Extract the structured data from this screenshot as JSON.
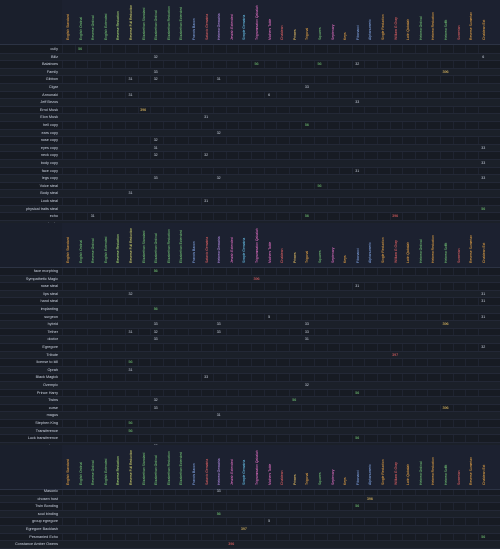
{
  "columns": [
    {
      "label": "English Standard",
      "color": "#ffb347"
    },
    {
      "label": "English Ordinal",
      "color": "#7cd67c"
    },
    {
      "label": "Reverse Ordinal",
      "color": "#7cd67c"
    },
    {
      "label": "English Extended",
      "color": "#7cd67c"
    },
    {
      "label": "Reverse Reduction",
      "color": "#b9f27c"
    },
    {
      "label": "Reverse Full Reduction",
      "color": "#e0e070"
    },
    {
      "label": "Elizabethan Standard",
      "color": "#7cd67c"
    },
    {
      "label": "Elizabethan Ordinal",
      "color": "#7cd67c"
    },
    {
      "label": "Elizabethan Reduction",
      "color": "#7cd67c"
    },
    {
      "label": "Elizabethan Extended",
      "color": "#7cd67c"
    },
    {
      "label": "Francis Bacon",
      "color": "#8fb8ff"
    },
    {
      "label": "Satanic Gematria",
      "color": "#ff6a6a"
    },
    {
      "label": "Hebrew Gematria",
      "color": "#c99bff"
    },
    {
      "label": "Jewish Extended",
      "color": "#ff7ad9"
    },
    {
      "label": "Simple Gematria",
      "color": "#6fd3ff"
    },
    {
      "label": "Trigrammaton Qabalah",
      "color": "#ff7ad9"
    },
    {
      "label": "Mathers Table",
      "color": "#ff7ad9"
    },
    {
      "label": "Chaldean",
      "color": "#ff6a6a"
    },
    {
      "label": "Primes",
      "color": "#ffd36a"
    },
    {
      "label": "Trigonal",
      "color": "#ffb347"
    },
    {
      "label": "Squares",
      "color": "#7cd67c"
    },
    {
      "label": "Septenary",
      "color": "#ff7ad9"
    },
    {
      "label": "Keys",
      "color": "#ffb347"
    },
    {
      "label": "Fibonacci",
      "color": "#8fb8ff"
    },
    {
      "label": "Alphanumeric",
      "color": "#8fb8ff"
    },
    {
      "label": "Single Reduction",
      "color": "#ffb347"
    },
    {
      "label": "William G Gray",
      "color": "#ff6a6a"
    },
    {
      "label": "Latin Qabalah",
      "color": "#ffb347"
    },
    {
      "label": "Hebrew Ordinal",
      "color": "#7cd67c"
    },
    {
      "label": "Hebrew Reduction",
      "color": "#ffb347"
    },
    {
      "label": "Hebrew Soffit",
      "color": "#7cd67c"
    },
    {
      "label": "Sumerian",
      "color": "#ff6a6a"
    },
    {
      "label": "Reverse Sumerian",
      "color": "#ffb347"
    },
    {
      "label": "Chaldean Ext",
      "color": "#ffb347"
    }
  ],
  "rows": [
    {
      "label": "cully",
      "alt": false,
      "cells": [
        [
          1,
          "56",
          "#7cd67c"
        ]
      ]
    },
    {
      "label": "Billz",
      "alt": true,
      "cells": [
        [
          7,
          "32",
          "#cfd6e4"
        ],
        [
          33,
          "6",
          "#cfd6e4"
        ]
      ]
    },
    {
      "label": "Balatroes",
      "alt": false,
      "cells": [
        [
          15,
          "56",
          "#7cd67c"
        ],
        [
          20,
          "56",
          "#7cd67c"
        ],
        [
          23,
          "32",
          "#cfd6e4"
        ]
      ]
    },
    {
      "label": "Family",
      "alt": true,
      "cells": [
        [
          7,
          "33",
          "#cfd6e4"
        ],
        [
          30,
          "396",
          "#ffd36a"
        ]
      ]
    },
    {
      "label": "Gibbon",
      "alt": false,
      "cells": [
        [
          5,
          "31",
          "#cfd6e4"
        ],
        [
          7,
          "32",
          "#cfd6e4"
        ],
        [
          12,
          "31",
          "#cfd6e4"
        ]
      ]
    },
    {
      "label": "Cigar",
      "alt": true,
      "cells": [
        [
          19,
          "33",
          "#cfd6e4"
        ]
      ]
    },
    {
      "label": "Annunaki",
      "alt": false,
      "cells": [
        [
          5,
          "31",
          "#cfd6e4"
        ],
        [
          16,
          "6",
          "#cfd6e4"
        ]
      ]
    },
    {
      "label": "Jeff Bezos",
      "alt": true,
      "cells": [
        [
          23,
          "33",
          "#cfd6e4"
        ]
      ]
    },
    {
      "label": "Errol Musk",
      "alt": false,
      "cells": [
        [
          6,
          "396",
          "#ffd36a"
        ]
      ]
    },
    {
      "label": "Elon Musk",
      "alt": true,
      "cells": [
        [
          11,
          "31",
          "#cfd6e4"
        ]
      ]
    },
    {
      "label": "hell copy",
      "alt": false,
      "cells": [
        [
          19,
          "56",
          "#7cd67c"
        ]
      ]
    },
    {
      "label": "ears copy",
      "alt": true,
      "cells": [
        [
          12,
          "32",
          "#cfd6e4"
        ]
      ]
    },
    {
      "label": "nose copy",
      "alt": false,
      "cells": [
        [
          7,
          "32",
          "#cfd6e4"
        ]
      ]
    },
    {
      "label": "eyes copy",
      "alt": true,
      "cells": [
        [
          7,
          "31",
          "#cfd6e4"
        ],
        [
          33,
          "33",
          "#cfd6e4"
        ]
      ]
    },
    {
      "label": "neck copy",
      "alt": false,
      "cells": [
        [
          7,
          "32",
          "#cfd6e4"
        ],
        [
          11,
          "32",
          "#cfd6e4"
        ]
      ]
    },
    {
      "label": "body copy",
      "alt": true,
      "cells": [
        [
          33,
          "33",
          "#cfd6e4"
        ]
      ]
    },
    {
      "label": "face copy",
      "alt": false,
      "cells": [
        [
          23,
          "31",
          "#cfd6e4"
        ]
      ]
    },
    {
      "label": "legs copy",
      "alt": true,
      "cells": [
        [
          7,
          "33",
          "#cfd6e4"
        ],
        [
          12,
          "32",
          "#cfd6e4"
        ],
        [
          33,
          "33",
          "#cfd6e4"
        ]
      ]
    },
    {
      "label": "Voice steal",
      "alt": false,
      "cells": [
        [
          20,
          "56",
          "#7cd67c"
        ]
      ]
    },
    {
      "label": "Body steal",
      "alt": true,
      "cells": [
        [
          5,
          "31",
          "#cfd6e4"
        ]
      ]
    },
    {
      "label": "Look steal",
      "alt": false,
      "cells": [
        [
          11,
          "31",
          "#cfd6e4"
        ]
      ]
    },
    {
      "label": "physical traits steal",
      "alt": true,
      "cells": [
        [
          33,
          "56",
          "#7cd67c"
        ]
      ]
    },
    {
      "label": "echo",
      "alt": false,
      "cells": [
        [
          2,
          "31",
          "#cfd6e4"
        ],
        [
          19,
          "56",
          "#7cd67c"
        ],
        [
          26,
          "396",
          "#ff6a6a"
        ]
      ]
    },
    {
      "label": "soul echo",
      "alt": true,
      "cells": []
    },
    {
      "label": "Glamour Magick",
      "alt": false,
      "cells": [
        [
          24,
          "397",
          "#ffd36a"
        ]
      ]
    }
  ],
  "rows2": [
    {
      "label": "face morphing",
      "alt": false,
      "cells": [
        [
          7,
          "56",
          "#7cd67c"
        ]
      ]
    },
    {
      "label": "Sympathetic Magic",
      "alt": true,
      "cells": [
        [
          15,
          "396",
          "#ff6a6a"
        ]
      ]
    },
    {
      "label": "nose steal",
      "alt": false,
      "cells": [
        [
          23,
          "31",
          "#cfd6e4"
        ]
      ]
    },
    {
      "label": "lips steal",
      "alt": true,
      "cells": [
        [
          5,
          "32",
          "#cfd6e4"
        ],
        [
          33,
          "31",
          "#cfd6e4"
        ]
      ]
    },
    {
      "label": "hand steal",
      "alt": false,
      "cells": [
        [
          33,
          "31",
          "#cfd6e4"
        ]
      ]
    },
    {
      "label": "implanting",
      "alt": true,
      "cells": [
        [
          7,
          "56",
          "#7cd67c"
        ]
      ]
    },
    {
      "label": "surgeon",
      "alt": false,
      "cells": [
        [
          16,
          "5",
          "#cfd6e4"
        ],
        [
          33,
          "31",
          "#cfd6e4"
        ]
      ]
    },
    {
      "label": "hybrid",
      "alt": true,
      "cells": [
        [
          7,
          "33",
          "#cfd6e4"
        ],
        [
          12,
          "33",
          "#cfd6e4"
        ],
        [
          19,
          "33",
          "#cfd6e4"
        ],
        [
          30,
          "396",
          "#ffd36a"
        ]
      ]
    },
    {
      "label": "Tether",
      "alt": false,
      "cells": [
        [
          5,
          "31",
          "#cfd6e4"
        ],
        [
          7,
          "32",
          "#cfd6e4"
        ],
        [
          12,
          "33",
          "#cfd6e4"
        ],
        [
          19,
          "33",
          "#cfd6e4"
        ]
      ]
    },
    {
      "label": "doctor",
      "alt": true,
      "cells": [
        [
          7,
          "33",
          "#cfd6e4"
        ],
        [
          19,
          "31",
          "#cfd6e4"
        ]
      ]
    },
    {
      "label": "Egregore",
      "alt": false,
      "cells": [
        [
          33,
          "32",
          "#cfd6e4"
        ]
      ]
    },
    {
      "label": "Tribute",
      "alt": true,
      "cells": [
        [
          26,
          "397",
          "#ff6a6a"
        ]
      ]
    },
    {
      "label": "license to kill",
      "alt": false,
      "cells": [
        [
          5,
          "56",
          "#7cd67c"
        ]
      ]
    },
    {
      "label": "Oprah",
      "alt": true,
      "cells": [
        [
          5,
          "31",
          "#cfd6e4"
        ]
      ]
    },
    {
      "label": "Black Magick",
      "alt": false,
      "cells": [
        [
          11,
          "33",
          "#cfd6e4"
        ]
      ]
    },
    {
      "label": "Ozempic",
      "alt": true,
      "cells": [
        [
          19,
          "32",
          "#cfd6e4"
        ]
      ]
    },
    {
      "label": "Prince Harry",
      "alt": false,
      "cells": [
        [
          23,
          "56",
          "#7cd67c"
        ]
      ]
    },
    {
      "label": "Twins",
      "alt": true,
      "cells": [
        [
          7,
          "32",
          "#cfd6e4"
        ],
        [
          18,
          "56",
          "#7cd67c"
        ]
      ]
    },
    {
      "label": "curse",
      "alt": false,
      "cells": [
        [
          7,
          "33",
          "#cfd6e4"
        ],
        [
          30,
          "396",
          "#ffd36a"
        ]
      ]
    },
    {
      "label": "magus",
      "alt": true,
      "cells": [
        [
          12,
          "31",
          "#cfd6e4"
        ]
      ]
    },
    {
      "label": "Stephen King",
      "alt": false,
      "cells": [
        [
          5,
          "56",
          "#7cd67c"
        ]
      ]
    },
    {
      "label": "Transference",
      "alt": true,
      "cells": [
        [
          5,
          "56",
          "#7cd67c"
        ]
      ]
    },
    {
      "label": "Luck transference",
      "alt": false,
      "cells": [
        [
          23,
          "56",
          "#7cd67c"
        ]
      ]
    },
    {
      "label": "make up",
      "alt": true,
      "cells": [
        [
          7,
          "32",
          "#cfd6e4"
        ]
      ]
    },
    {
      "label": "Prince William",
      "alt": false,
      "cells": [
        [
          19,
          "56",
          "#7cd67c"
        ]
      ]
    }
  ],
  "rows3": [
    {
      "label": "Masonic",
      "alt": false,
      "cells": [
        [
          12,
          "33",
          "#cfd6e4"
        ]
      ]
    },
    {
      "label": "chosen host",
      "alt": true,
      "cells": [
        [
          24,
          "396",
          "#ffd36a"
        ]
      ]
    },
    {
      "label": "Twin Bonding",
      "alt": false,
      "cells": [
        [
          23,
          "56",
          "#7cd67c"
        ]
      ]
    },
    {
      "label": "soul binding",
      "alt": true,
      "cells": [
        [
          12,
          "56",
          "#7cd67c"
        ]
      ]
    },
    {
      "label": "group egregore",
      "alt": false,
      "cells": [
        [
          16,
          "5",
          "#cfd6e4"
        ]
      ]
    },
    {
      "label": "Egregore Backlash",
      "alt": true,
      "cells": [
        [
          14,
          "397",
          "#ffd36a"
        ]
      ]
    },
    {
      "label": "Pesmanied Echo",
      "alt": false,
      "cells": [
        [
          33,
          "56",
          "#7cd67c"
        ]
      ]
    },
    {
      "label": "Constance Amber Owens",
      "alt": true,
      "cells": [
        [
          13,
          "396",
          "#ff6a6a"
        ]
      ]
    }
  ]
}
